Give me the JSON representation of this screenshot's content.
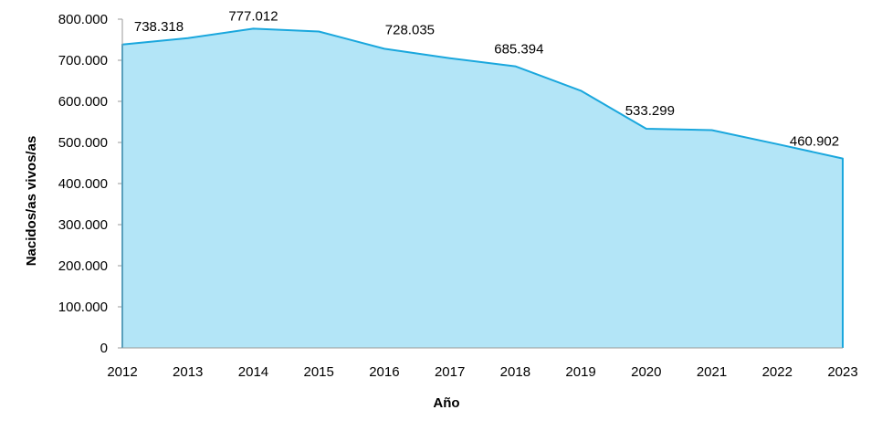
{
  "chart_data": {
    "type": "area",
    "title": "",
    "xlabel": "Año",
    "ylabel": "Nacidos/as vivos/as",
    "x": [
      "2012",
      "2013",
      "2014",
      "2015",
      "2016",
      "2017",
      "2018",
      "2019",
      "2020",
      "2021",
      "2022",
      "2023"
    ],
    "series": [
      {
        "values": [
          738318,
          754000,
          777012,
          770000,
          728035,
          705000,
          685394,
          626000,
          533299,
          530000,
          496000,
          460902
        ]
      }
    ],
    "data_labels": [
      {
        "x": "2012",
        "text": "738.318"
      },
      {
        "x": "2014",
        "text": "777.012"
      },
      {
        "x": "2016",
        "text": "728.035"
      },
      {
        "x": "2018",
        "text": "685.394"
      },
      {
        "x": "2020",
        "text": "533.299"
      },
      {
        "x": "2023",
        "text": "460.902"
      }
    ],
    "y_ticks": [
      "0",
      "100.000",
      "200.000",
      "300.000",
      "400.000",
      "500.000",
      "600.000",
      "700.000",
      "800.000"
    ],
    "ylim": [
      0,
      800000
    ],
    "grid": false,
    "legend": "none",
    "colors": {
      "fill": "#b3e5f7",
      "line": "#1aa7dd",
      "axis": "#9a9a9a"
    }
  }
}
